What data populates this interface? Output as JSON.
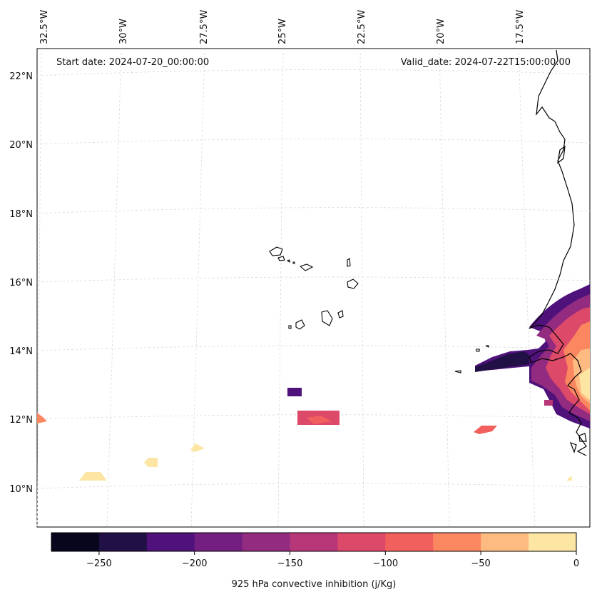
{
  "header": {
    "start_date": "Start date: 2024-07-20_00:00:00",
    "valid_date": "Valid_date: 2024-07-22T15:00:00.00"
  },
  "axes": {
    "lon_labels": [
      "32.5°W",
      "30°W",
      "27.5°W",
      "25°W",
      "22.5°W",
      "20°W",
      "17.5°W"
    ],
    "lat_labels": [
      "22°N",
      "20°N",
      "18°N",
      "16°N",
      "14°N",
      "12°N",
      "10°N"
    ]
  },
  "colorbar": {
    "label": "925 hPa convective inhibition (j/Kg)",
    "ticks": [
      "−250",
      "−200",
      "−150",
      "−100",
      "−50",
      "0"
    ],
    "colors": [
      "#07061c",
      "#211045",
      "#4f127b",
      "#721f81",
      "#932b80",
      "#b73779",
      "#dd4a69",
      "#f1605d",
      "#fb8761",
      "#febb81",
      "#fde6a3"
    ]
  },
  "map": {
    "coastline_color": "#000000",
    "gridline_color": "#cccccc",
    "background": "#ffffff"
  }
}
